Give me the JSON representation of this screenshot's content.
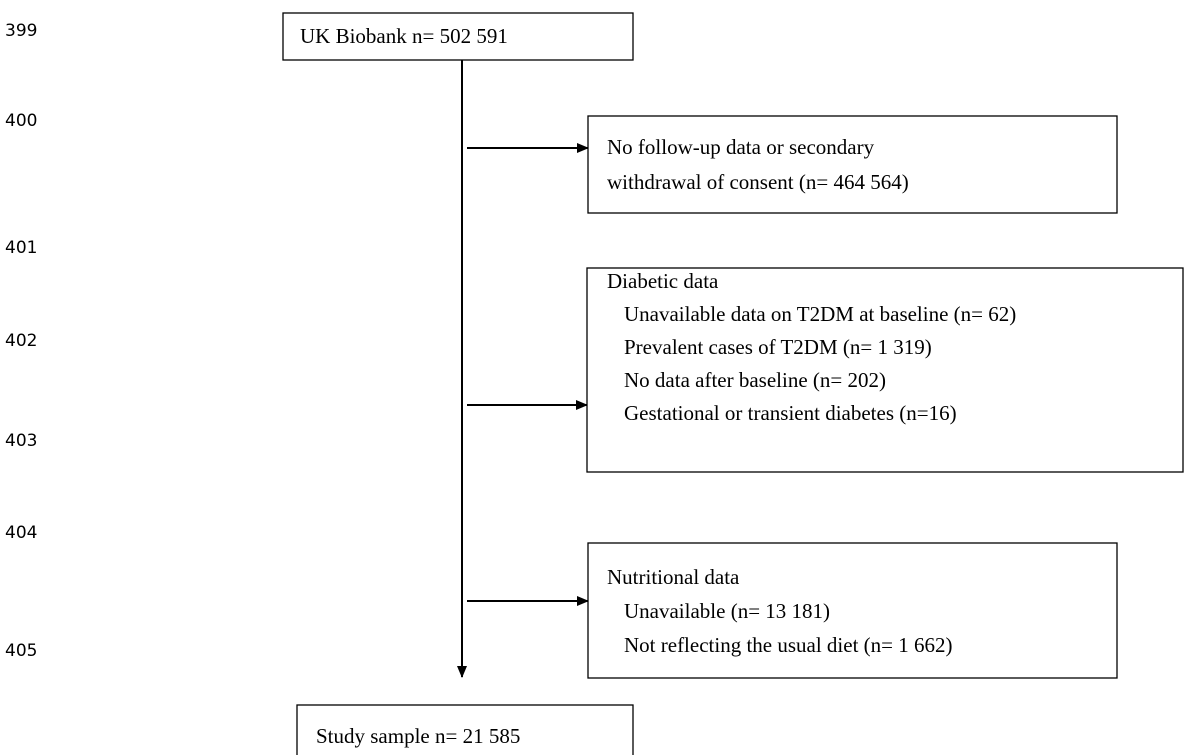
{
  "line_numbers": [
    "399",
    "400",
    "401",
    "402",
    "403",
    "404",
    "405"
  ],
  "nodes": [
    {
      "lines": [
        "UK Biobank n= 502 591"
      ]
    },
    {
      "lines": [
        "No follow-up data or secondary",
        "withdrawal of consent (n= 464 564)"
      ]
    },
    {
      "title": "Diabetic data",
      "items": [
        "Unavailable data on T2DM at baseline (n= 62)",
        "Prevalent cases of T2DM (n= 1 319)",
        "No data after baseline (n= 202)",
        "Gestational or transient diabetes (n=16)"
      ]
    },
    {
      "title": "Nutritional data",
      "items": [
        "Unavailable (n= 13 181)",
        "Not reflecting the usual diet (n= 1 662)"
      ]
    },
    {
      "lines": [
        "Study sample n= 21 585"
      ]
    }
  ]
}
